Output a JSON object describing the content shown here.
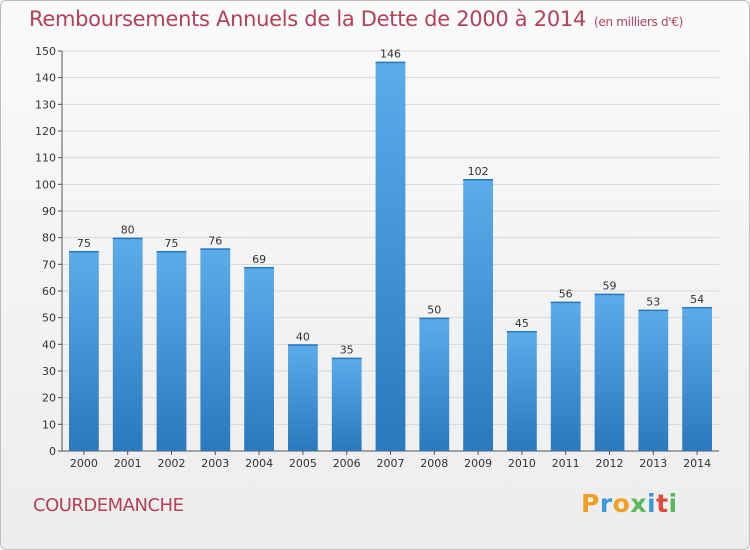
{
  "header": {
    "title": "Remboursements Annuels de la Dette de 2000 à 2014",
    "subtitle": "(en milliers d'€)"
  },
  "footer": {
    "commune": "COURDEMANCHE",
    "logo_letters": [
      "P",
      "r",
      "o",
      "x",
      "i",
      "t",
      "i"
    ],
    "logo_colors": [
      "#f0a020",
      "#3a9ad9",
      "#f0a020",
      "#5cb85c",
      "#3a9ad9",
      "#e0483a",
      "#5cb85c"
    ]
  },
  "colors": {
    "bar": "#3f95dc",
    "bar_light": "#5cacec",
    "bar_dark": "#2a78bd",
    "grid": "#d8d8d8",
    "title": "#b5405a"
  },
  "chart_data": {
    "type": "bar",
    "categories": [
      "2000",
      "2001",
      "2002",
      "2003",
      "2004",
      "2005",
      "2006",
      "2007",
      "2008",
      "2009",
      "2010",
      "2011",
      "2012",
      "2013",
      "2014"
    ],
    "values": [
      75,
      80,
      75,
      76,
      69,
      40,
      35,
      146,
      50,
      102,
      45,
      56,
      59,
      53,
      54
    ],
    "ylim": [
      0,
      150
    ],
    "yticks": [
      0,
      10,
      20,
      30,
      40,
      50,
      60,
      70,
      80,
      90,
      100,
      110,
      120,
      130,
      140,
      150
    ],
    "grid": true,
    "xlabel": "",
    "ylabel": ""
  }
}
